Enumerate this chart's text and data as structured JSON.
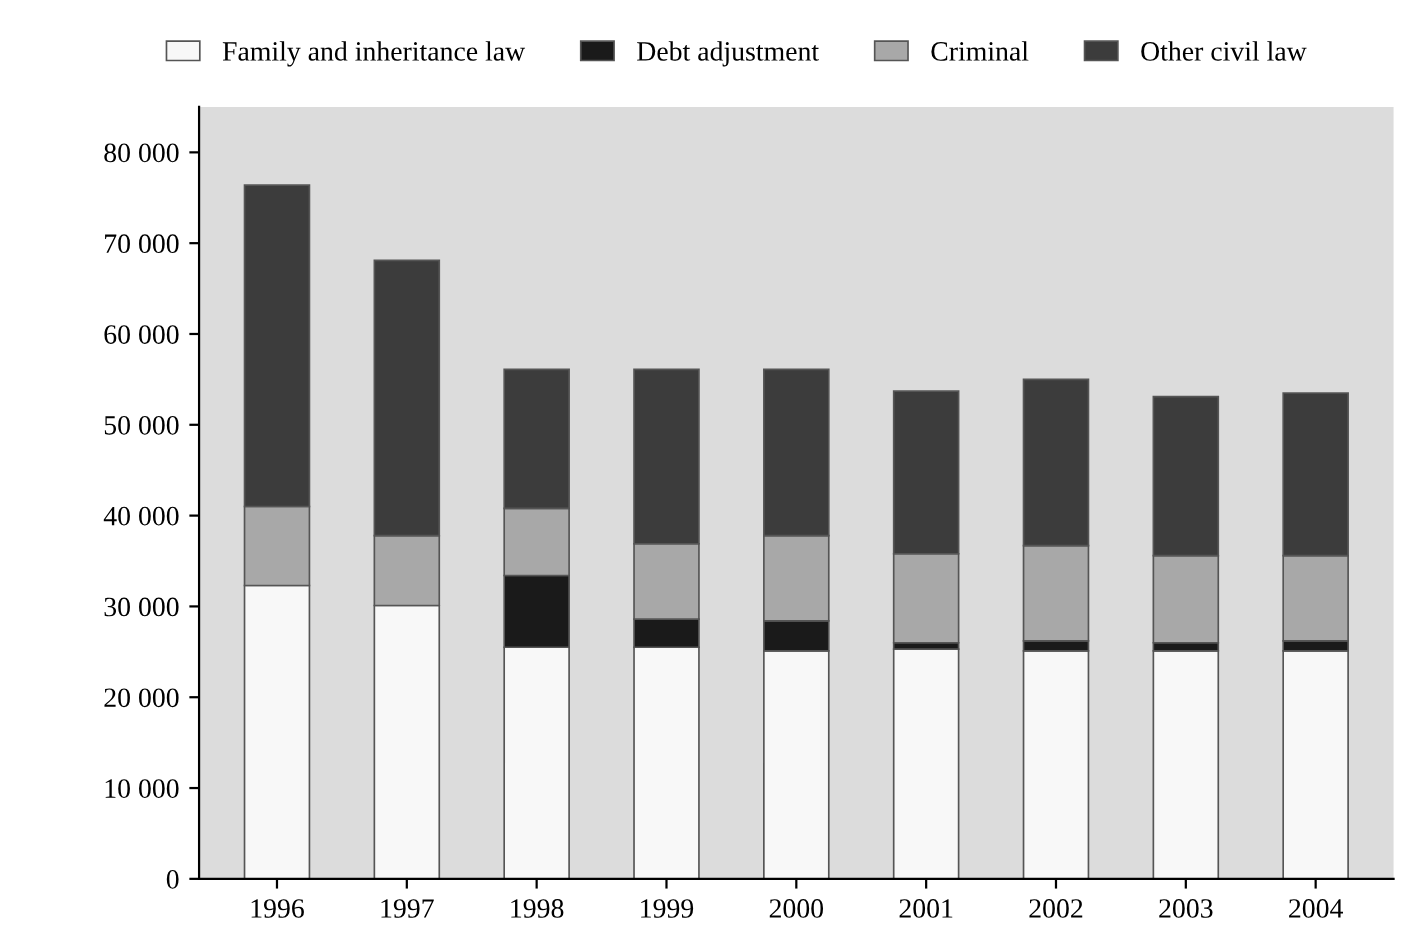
{
  "chart_data": {
    "type": "bar",
    "stacked": true,
    "categories": [
      "1996",
      "1997",
      "1998",
      "1999",
      "2000",
      "2001",
      "2002",
      "2003",
      "2004"
    ],
    "series": [
      {
        "name": "Family and inheritance law",
        "color": "#f8f8f8",
        "values": [
          32300,
          30100,
          25500,
          25500,
          25100,
          25300,
          25100,
          25100,
          25100
        ]
      },
      {
        "name": "Debt adjustment",
        "color": "#1a1a1a",
        "values": [
          null,
          null,
          7900,
          3100,
          3300,
          700,
          1100,
          900,
          1100
        ]
      },
      {
        "name": "Criminal",
        "color": "#a8a8a8",
        "values": [
          8700,
          7700,
          7400,
          8300,
          9400,
          9800,
          10500,
          9600,
          9400
        ]
      },
      {
        "name": "Other civil law",
        "color": "#3c3c3c",
        "values": [
          35400,
          30300,
          15300,
          19200,
          18300,
          17900,
          18300,
          17500,
          17900
        ]
      }
    ],
    "ylim": [
      0,
      85000
    ],
    "yticks": [
      {
        "value": 0,
        "label": "0"
      },
      {
        "value": 10000,
        "label": "10 000"
      },
      {
        "value": 20000,
        "label": "20 000"
      },
      {
        "value": 30000,
        "label": "30 000"
      },
      {
        "value": 40000,
        "label": "40 000"
      },
      {
        "value": 50000,
        "label": "50 000"
      },
      {
        "value": 60000,
        "label": "60 000"
      },
      {
        "value": 70000,
        "label": "70 000"
      },
      {
        "value": 80000,
        "label": "80 000"
      }
    ],
    "grid": false,
    "legend": "top"
  }
}
